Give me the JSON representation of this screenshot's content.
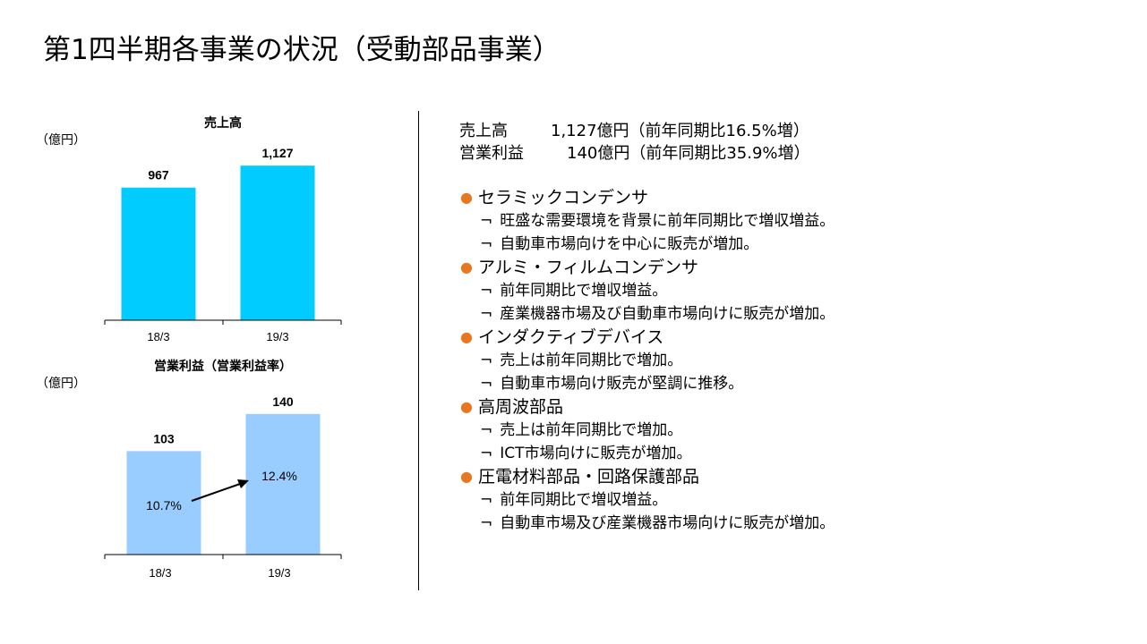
{
  "title": "第1四半期各事業の状況（受動部品事業）",
  "units": {
    "top": "（億円）",
    "bottom": "（億円）"
  },
  "chart_data": [
    {
      "type": "bar",
      "title": "売上高",
      "categories": [
        "18/3",
        "19/3"
      ],
      "values": [
        967,
        1127
      ],
      "value_labels": [
        "967",
        "1,127"
      ],
      "ylim": [
        0,
        1200
      ],
      "color": "#00ccff"
    },
    {
      "type": "bar",
      "title": "営業利益（営業利益率）",
      "categories": [
        "18/3",
        "19/3"
      ],
      "values": [
        103,
        140
      ],
      "value_labels": [
        "103",
        "140"
      ],
      "margin_rates": [
        "10.7%",
        "12.4%"
      ],
      "ylim": [
        0,
        155
      ],
      "color": "#99ccff"
    }
  ],
  "summary": [
    {
      "label": "売上高",
      "value": "1,127億円（前年同期比16.5%増）"
    },
    {
      "label": "営業利益",
      "value": "140億円（前年同期比35.9%増）"
    }
  ],
  "bullet_glyph": "●",
  "sub_glyph": "¬",
  "segments": [
    {
      "name": "セラミックコンデンサ",
      "items": [
        "旺盛な需要環境を背景に前年同期比で増収増益。",
        "自動車市場向けを中心に販売が増加。"
      ]
    },
    {
      "name": "アルミ・フィルムコンデンサ",
      "items": [
        "前年同期比で増収増益。",
        "産業機器市場及び自動車市場向けに販売が増加。"
      ]
    },
    {
      "name": "インダクティブデバイス",
      "items": [
        "売上は前年同期比で増加。",
        "自動車市場向け販売が堅調に推移。"
      ]
    },
    {
      "name": "高周波部品",
      "items": [
        "売上は前年同期比で増加。",
        "ICT市場向けに販売が増加。"
      ]
    },
    {
      "name": "圧電材料部品・回路保護部品",
      "items": [
        "前年同期比で増収増益。",
        "自動車市場及び産業機器市場向けに販売が増加。"
      ]
    }
  ]
}
